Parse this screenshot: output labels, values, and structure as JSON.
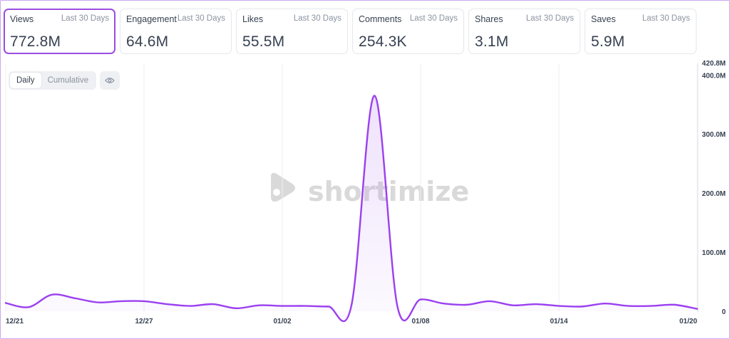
{
  "metrics": [
    {
      "name": "Views",
      "period": "Last 30 Days",
      "value": "772.8M"
    },
    {
      "name": "Engagement",
      "period": "Last 30 Days",
      "value": "64.6M"
    },
    {
      "name": "Likes",
      "period": "Last 30 Days",
      "value": "55.5M"
    },
    {
      "name": "Comments",
      "period": "Last 30 Days",
      "value": "254.3K"
    },
    {
      "name": "Shares",
      "period": "Last 30 Days",
      "value": "3.1M"
    },
    {
      "name": "Saves",
      "period": "Last 30 Days",
      "value": "5.9M"
    }
  ],
  "toggle": {
    "daily": "Daily",
    "cumulative": "Cumulative"
  },
  "eye_icon": "eye-icon",
  "watermark": "shortimize",
  "chart_data": {
    "type": "area",
    "title": "",
    "xlabel": "",
    "ylabel": "",
    "ylim": [
      0,
      420.8
    ],
    "y_unit": "M",
    "y_ticks": [
      "0",
      "100.0M",
      "200.0M",
      "300.0M",
      "400.0M",
      "420.8M"
    ],
    "x_ticks": [
      "12/21",
      "12/27",
      "01/02",
      "01/08",
      "01/14",
      "01/20"
    ],
    "x": [
      "12/21",
      "12/22",
      "12/23",
      "12/24",
      "12/25",
      "12/26",
      "12/27",
      "12/28",
      "12/29",
      "12/30",
      "12/31",
      "01/01",
      "01/02",
      "01/03",
      "01/04",
      "01/05",
      "01/06",
      "01/07",
      "01/08",
      "01/09",
      "01/10",
      "01/11",
      "01/12",
      "01/13",
      "01/14",
      "01/15",
      "01/16",
      "01/17",
      "01/18",
      "01/19",
      "01/20"
    ],
    "series": [
      {
        "values": [
          14,
          7,
          28,
          22,
          15,
          17,
          17,
          12,
          9,
          12,
          5,
          10,
          9,
          9,
          8,
          10,
          365,
          7,
          20,
          13,
          11,
          17,
          10,
          12,
          9,
          8,
          13,
          9,
          9,
          11,
          4
        ]
      }
    ],
    "color": "#9b3ff0",
    "grid": "vertical",
    "legend": "none"
  }
}
